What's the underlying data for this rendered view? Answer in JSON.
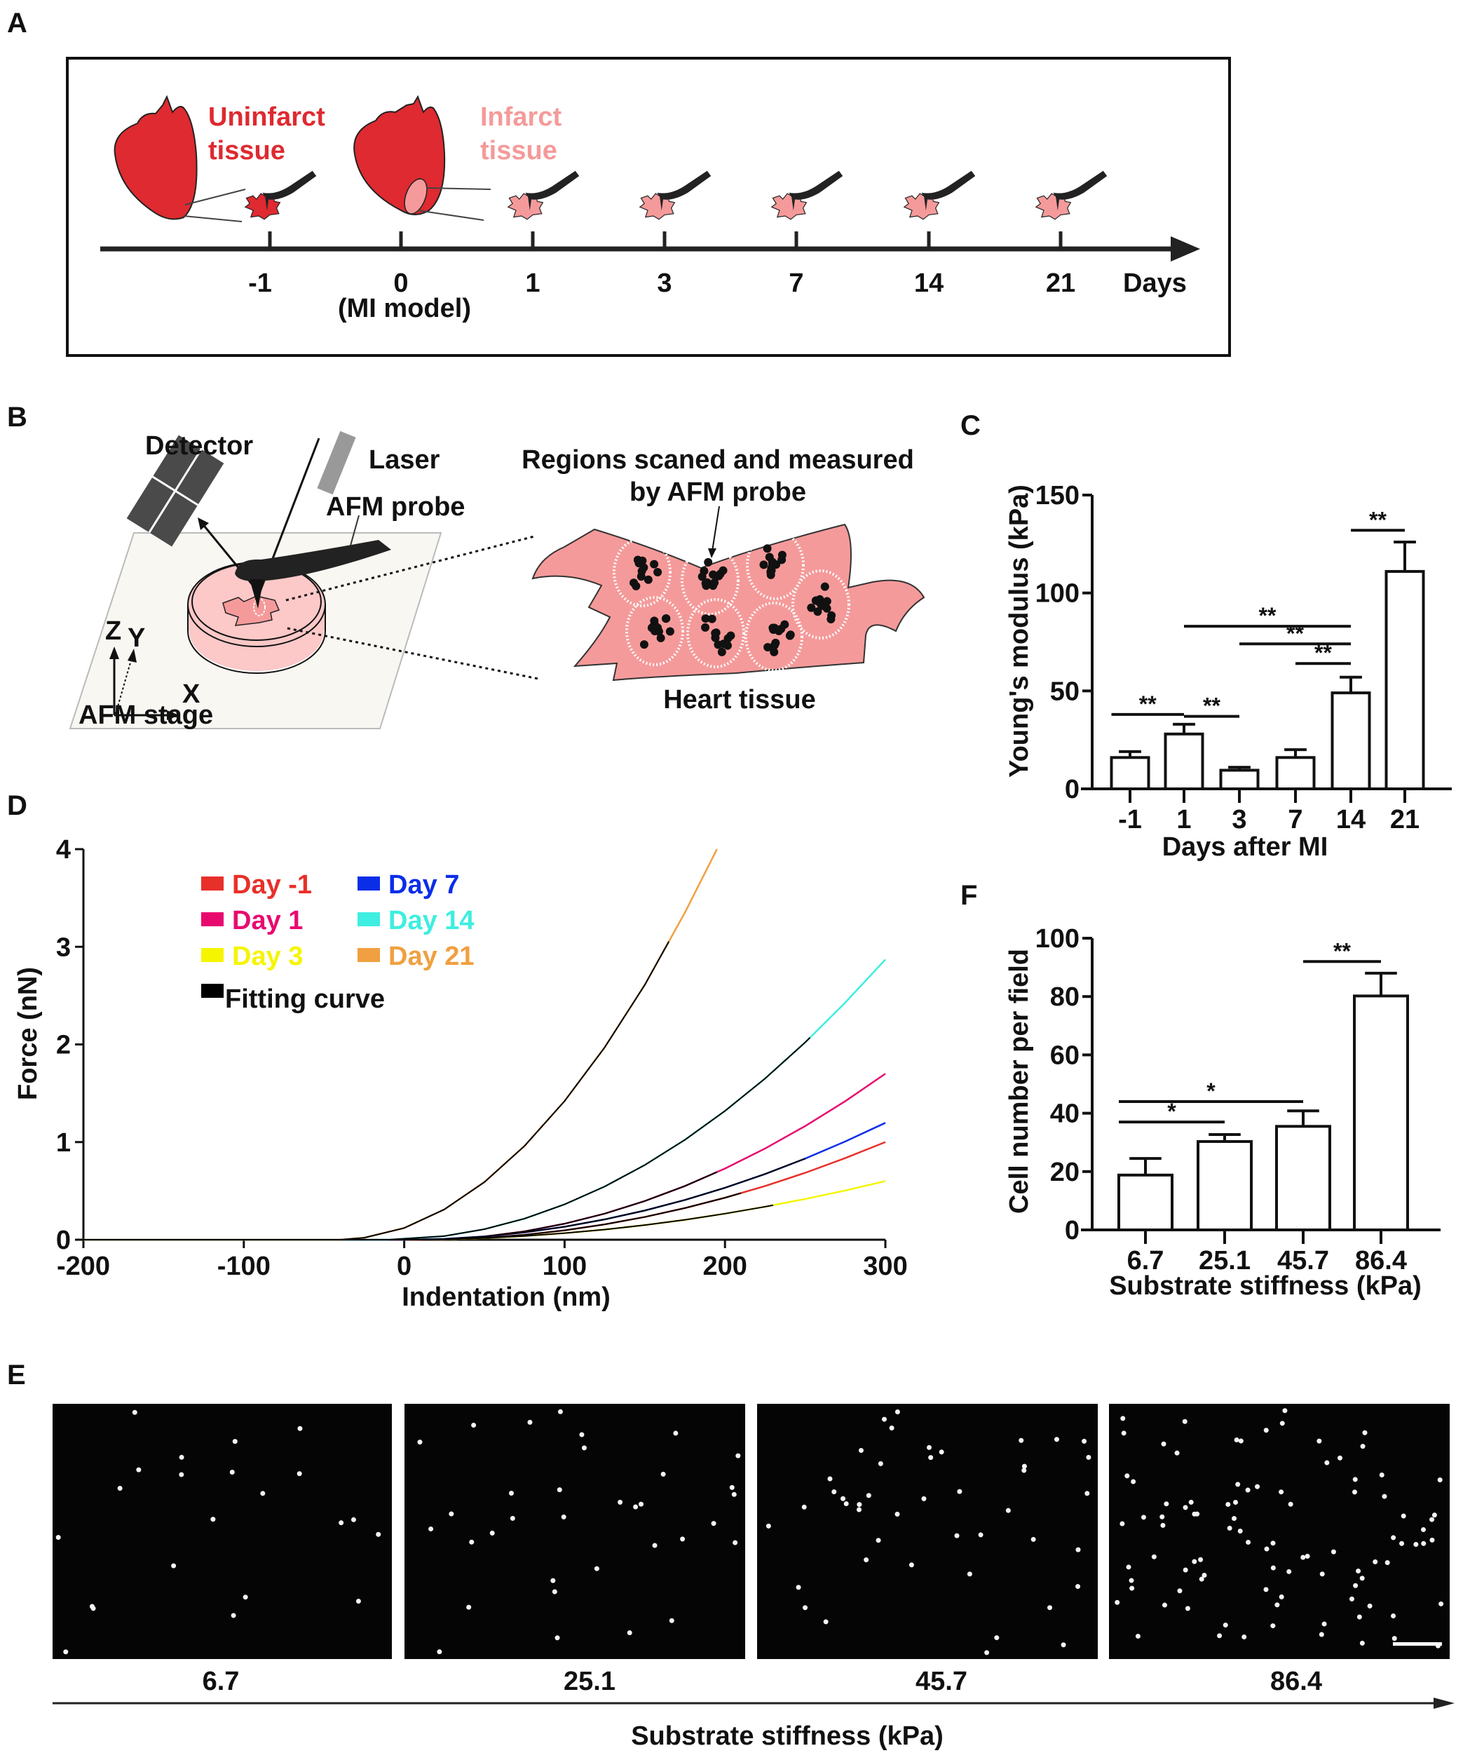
{
  "panels": {
    "A": "A",
    "B": "B",
    "C": "C",
    "D": "D",
    "E": "E",
    "F": "F"
  },
  "panelA": {
    "uninfarct_line1": "Uninfarct",
    "uninfarct_line2": "tissue",
    "infarct_line1": "Infarct",
    "infarct_line2": "tissue",
    "timeline_ticks": [
      "-1",
      "0",
      "1",
      "3",
      "7",
      "14",
      "21"
    ],
    "mi_model": "(MI model)",
    "unit": "Days",
    "colors": {
      "uninfarct": "#de2a30",
      "infarct": "#f59a9a"
    }
  },
  "panelB": {
    "detector": "Detector",
    "laser": "Laser",
    "afm_probe": "AFM probe",
    "regions_line1": "Regions scaned and measured",
    "regions_line2": "by AFM probe",
    "heart_tissue": "Heart tissue",
    "axis_z": "Z",
    "axis_y": "Y",
    "axis_x": "X",
    "afm_stage": "AFM stage"
  },
  "panelE": {
    "labels": [
      "6.7",
      "25.1",
      "45.7",
      "86.4"
    ],
    "axis_label": "Substrate stiffness (kPa)"
  },
  "chart_data": [
    {
      "id": "C",
      "type": "bar",
      "categories": [
        "-1",
        "1",
        "3",
        "7",
        "14",
        "21"
      ],
      "values": [
        16,
        28,
        9.5,
        16,
        49,
        111
      ],
      "errors": [
        3,
        5,
        1.5,
        4,
        8,
        15
      ],
      "xlabel": "Days after MI",
      "ylabel": "Young's modulus (kPa)",
      "ylim": [
        0,
        150
      ],
      "yticks": [
        "0",
        "50",
        "100",
        "150"
      ],
      "significance": [
        {
          "from": 0,
          "to": 1,
          "label": "**",
          "level": 38
        },
        {
          "from": 1,
          "to": 2,
          "label": "**",
          "level": 37
        },
        {
          "from": 1,
          "to": 4,
          "label": "**",
          "level": 83
        },
        {
          "from": 2,
          "to": 4,
          "label": "**",
          "level": 74
        },
        {
          "from": 3,
          "to": 4,
          "label": "**",
          "level": 64
        },
        {
          "from": 4,
          "to": 5,
          "label": "**",
          "level": 132
        }
      ]
    },
    {
      "id": "D",
      "type": "line",
      "xlabel": "Indentation (nm)",
      "ylabel": "Force (nN)",
      "xlim": [
        -200,
        300
      ],
      "ylim": [
        0,
        4
      ],
      "xticks": [
        "-200",
        "-100",
        "0",
        "100",
        "200",
        "300"
      ],
      "yticks": [
        "0",
        "1",
        "2",
        "3",
        "4"
      ],
      "legend_position": "top-left",
      "fit_label": "Fitting curve",
      "fit_color": "#000000",
      "series": [
        {
          "name": "Day -1",
          "color": "#e8302a",
          "fit_end": 210,
          "x": [
            -200,
            10,
            25,
            50,
            75,
            100,
            125,
            150,
            175,
            200,
            225,
            250,
            275,
            300
          ],
          "y": [
            0,
            0,
            0.003,
            0.019,
            0.05,
            0.096,
            0.157,
            0.233,
            0.324,
            0.43,
            0.55,
            0.685,
            0.836,
            1.0
          ]
        },
        {
          "name": "Day 1",
          "color": "#e8096f",
          "fit_end": 195,
          "x": [
            -200,
            10,
            25,
            50,
            75,
            100,
            125,
            150,
            175,
            200,
            225,
            250,
            275,
            300
          ],
          "y": [
            0,
            0,
            0.005,
            0.032,
            0.085,
            0.164,
            0.267,
            0.396,
            0.55,
            0.729,
            0.934,
            1.164,
            1.419,
            1.7
          ]
        },
        {
          "name": "Day 3",
          "color": "#f5f500",
          "fit_end": 230,
          "x": [
            -200,
            0,
            25,
            50,
            75,
            100,
            125,
            150,
            175,
            200,
            225,
            250,
            275,
            300
          ],
          "y": [
            0,
            0,
            0.004,
            0.017,
            0.038,
            0.067,
            0.104,
            0.15,
            0.204,
            0.267,
            0.338,
            0.417,
            0.504,
            0.6
          ]
        },
        {
          "name": "Day 7",
          "color": "#0a2ee8",
          "fit_end": 250,
          "x": [
            -200,
            0,
            25,
            50,
            75,
            100,
            125,
            150,
            175,
            200,
            225,
            250,
            275,
            300
          ],
          "y": [
            0,
            0,
            0.008,
            0.033,
            0.075,
            0.133,
            0.208,
            0.299,
            0.407,
            0.532,
            0.673,
            0.831,
            1.006,
            1.197
          ]
        },
        {
          "name": "Day 14",
          "color": "#3eeee0",
          "fit_end": 253,
          "x": [
            -200,
            -10,
            25,
            50,
            75,
            100,
            125,
            150,
            175,
            200,
            225,
            250,
            275,
            300
          ],
          "y": [
            0,
            0,
            0.037,
            0.108,
            0.216,
            0.362,
            0.545,
            0.765,
            1.023,
            1.319,
            1.651,
            2.021,
            2.429,
            2.87
          ]
        },
        {
          "name": "Day 21",
          "color": "#f0a040",
          "fit_end": 165,
          "x": [
            -200,
            -40,
            -25,
            0,
            25,
            50,
            75,
            100,
            125,
            150,
            175,
            195
          ],
          "y": [
            0,
            0,
            0.02,
            0.12,
            0.31,
            0.59,
            0.96,
            1.42,
            1.97,
            2.61,
            3.35,
            4.0
          ]
        }
      ]
    },
    {
      "id": "F",
      "type": "bar",
      "categories": [
        "6.7",
        "25.1",
        "45.7",
        "86.4"
      ],
      "values": [
        18.8,
        30.3,
        35.5,
        80.2
      ],
      "errors": [
        5.7,
        2.4,
        5.3,
        7.8
      ],
      "xlabel": "Substrate stiffness (kPa)",
      "ylabel": "Cell number per field",
      "ylim": [
        0,
        100
      ],
      "yticks": [
        "0",
        "20",
        "40",
        "60",
        "80",
        "100"
      ],
      "significance": [
        {
          "from": 0,
          "to": 1,
          "label": "*",
          "level": 37
        },
        {
          "from": 0,
          "to": 2,
          "label": "*",
          "level": 44
        },
        {
          "from": 2,
          "to": 3,
          "label": "**",
          "level": 92
        }
      ]
    }
  ]
}
